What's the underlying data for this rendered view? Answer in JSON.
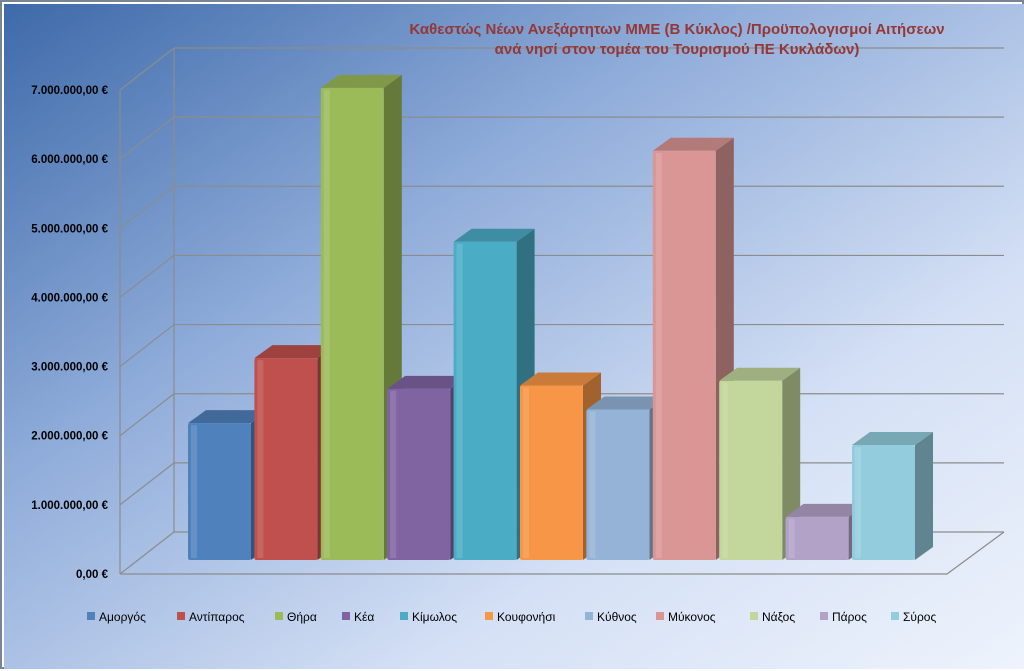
{
  "chart_data": {
    "type": "bar",
    "title": "Καθεστώς Νέων Ανεξάρτητων ΜΜΕ (Β Κύκλος) /Προϋπολογισμοί Αιτήσεων",
    "subtitle": "ανά νησί στον τομέα του Τουρισμού ΠΕ Κυκλάδων)",
    "y_ticks": [
      "0,00 €",
      "1.000.000,00 €",
      "2.000.000,00 €",
      "3.000.000,00 €",
      "4.000.000,00 €",
      "5.000.000,00 €",
      "6.000.000,00 €",
      "7.000.000,00 €"
    ],
    "ylim": [
      0,
      7000000
    ],
    "grid": true,
    "legend_position": "bottom",
    "series": [
      {
        "name": "Αμοργός",
        "value": 2000000,
        "color": "#4f81bd"
      },
      {
        "name": "Αντίπαρος",
        "value": 2950000,
        "color": "#c0504d"
      },
      {
        "name": "Θήρα",
        "value": 6900000,
        "color": "#9bbb59"
      },
      {
        "name": "Κέα",
        "value": 2500000,
        "color": "#8064a2"
      },
      {
        "name": "Κίμωλος",
        "value": 4650000,
        "color": "#4bacc6"
      },
      {
        "name": "Κουφονήσι",
        "value": 2550000,
        "color": "#f79646"
      },
      {
        "name": "Κύθνος",
        "value": 2200000,
        "color": "#95b3d7"
      },
      {
        "name": "Μύκονος",
        "value": 5980000,
        "color": "#d99694"
      },
      {
        "name": "Νάξος",
        "value": 2620000,
        "color": "#c3d69b"
      },
      {
        "name": "Πάρος",
        "value": 630000,
        "color": "#b3a2c7"
      },
      {
        "name": "Σύρος",
        "value": 1680000,
        "color": "#93cddd"
      }
    ]
  }
}
